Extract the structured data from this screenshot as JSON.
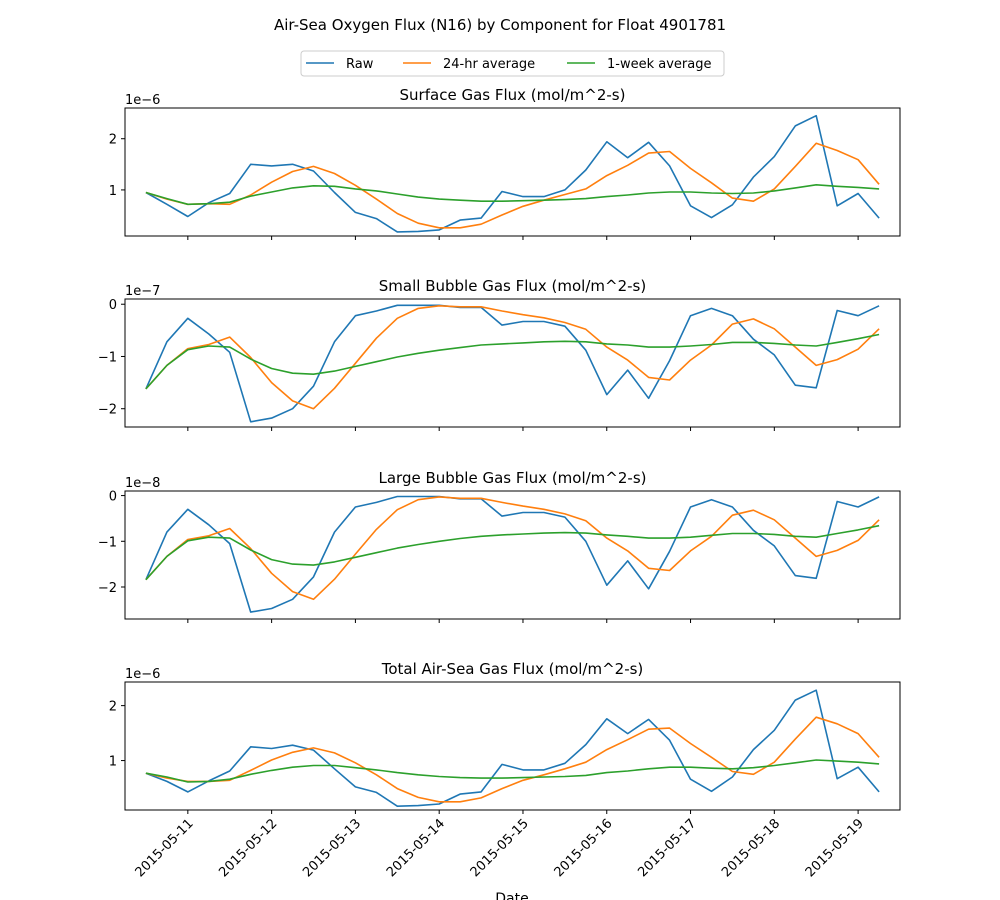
{
  "figure": {
    "title": "Air-Sea Oxygen Flux (N16) by Component for Float 4901781",
    "xlabel": "Date"
  },
  "legend": {
    "placement": "top-center",
    "entries": [
      {
        "label": "Raw",
        "color": "#1f77b4"
      },
      {
        "label": "24-hr average",
        "color": "#ff7f0e"
      },
      {
        "label": "1-week average",
        "color": "#2ca02c"
      }
    ]
  },
  "colors": {
    "raw": "#1f77b4",
    "avg24": "#ff7f0e",
    "avg1w": "#2ca02c"
  },
  "chart_data": [
    {
      "type": "line",
      "title": "Surface Gas Flux (mol/m^2-s)",
      "exponent": "1e−6",
      "xlim": [
        "2015-05-10T06:00",
        "2015-05-19T12:00"
      ],
      "ylim": [
        0.1,
        2.6
      ],
      "yticks": [
        1,
        2
      ],
      "ytick_labels": [
        "1",
        "2"
      ],
      "x": [
        "2015-05-10T12:00",
        "2015-05-10T18:00",
        "2015-05-11T00:00",
        "2015-05-11T06:00",
        "2015-05-11T12:00",
        "2015-05-11T18:00",
        "2015-05-12T00:00",
        "2015-05-12T06:00",
        "2015-05-12T12:00",
        "2015-05-12T18:00",
        "2015-05-13T00:00",
        "2015-05-13T06:00",
        "2015-05-13T12:00",
        "2015-05-13T18:00",
        "2015-05-14T00:00",
        "2015-05-14T06:00",
        "2015-05-14T12:00",
        "2015-05-14T18:00",
        "2015-05-15T00:00",
        "2015-05-15T06:00",
        "2015-05-15T12:00",
        "2015-05-15T18:00",
        "2015-05-16T00:00",
        "2015-05-16T06:00",
        "2015-05-16T12:00",
        "2015-05-16T18:00",
        "2015-05-17T00:00",
        "2015-05-17T06:00",
        "2015-05-17T12:00",
        "2015-05-17T18:00",
        "2015-05-18T00:00",
        "2015-05-18T06:00",
        "2015-05-18T12:00",
        "2015-05-18T18:00",
        "2015-05-19T00:00",
        "2015-05-19T06:00"
      ],
      "series": [
        {
          "name": "Raw",
          "values": [
            0.95,
            0.72,
            0.48,
            0.75,
            0.93,
            1.5,
            1.47,
            1.5,
            1.37,
            0.95,
            0.56,
            0.44,
            0.18,
            0.19,
            0.22,
            0.41,
            0.45,
            0.97,
            0.87,
            0.87,
            1.0,
            1.39,
            1.94,
            1.63,
            1.93,
            1.47,
            0.69,
            0.46,
            0.71,
            1.25,
            1.65,
            2.25,
            2.45,
            0.69,
            0.93,
            0.45
          ]
        },
        {
          "name": "24-hr average",
          "values": [
            0.95,
            0.82,
            0.72,
            0.73,
            0.72,
            0.9,
            1.15,
            1.36,
            1.46,
            1.32,
            1.09,
            0.82,
            0.54,
            0.35,
            0.26,
            0.26,
            0.33,
            0.51,
            0.68,
            0.8,
            0.91,
            1.02,
            1.28,
            1.48,
            1.72,
            1.75,
            1.42,
            1.14,
            0.84,
            0.78,
            1.02,
            1.46,
            1.91,
            1.77,
            1.59,
            1.11
          ]
        },
        {
          "name": "1-week average",
          "values": [
            0.95,
            0.83,
            0.72,
            0.73,
            0.76,
            0.88,
            0.96,
            1.04,
            1.08,
            1.07,
            1.02,
            0.98,
            0.92,
            0.86,
            0.82,
            0.8,
            0.78,
            0.78,
            0.79,
            0.8,
            0.81,
            0.83,
            0.87,
            0.9,
            0.94,
            0.96,
            0.96,
            0.94,
            0.93,
            0.94,
            0.98,
            1.04,
            1.1,
            1.07,
            1.05,
            1.02
          ]
        }
      ]
    },
    {
      "type": "line",
      "title": "Small Bubble Gas Flux (mol/m^2-s)",
      "exponent": "1e−7",
      "xlim": [
        "2015-05-10T06:00",
        "2015-05-19T12:00"
      ],
      "ylim": [
        -2.35,
        0.1
      ],
      "yticks": [
        -2,
        -1,
        0
      ],
      "ytick_labels": [
        "−2",
        "−1",
        "0"
      ],
      "x": [
        "2015-05-10T12:00",
        "2015-05-10T18:00",
        "2015-05-11T00:00",
        "2015-05-11T06:00",
        "2015-05-11T12:00",
        "2015-05-11T18:00",
        "2015-05-12T00:00",
        "2015-05-12T06:00",
        "2015-05-12T12:00",
        "2015-05-12T18:00",
        "2015-05-13T00:00",
        "2015-05-13T06:00",
        "2015-05-13T12:00",
        "2015-05-13T18:00",
        "2015-05-14T00:00",
        "2015-05-14T06:00",
        "2015-05-14T12:00",
        "2015-05-14T18:00",
        "2015-05-15T00:00",
        "2015-05-15T06:00",
        "2015-05-15T12:00",
        "2015-05-15T18:00",
        "2015-05-16T00:00",
        "2015-05-16T06:00",
        "2015-05-16T12:00",
        "2015-05-16T18:00",
        "2015-05-17T00:00",
        "2015-05-17T06:00",
        "2015-05-17T12:00",
        "2015-05-17T18:00",
        "2015-05-18T00:00",
        "2015-05-18T06:00",
        "2015-05-18T12:00",
        "2015-05-18T18:00",
        "2015-05-19T00:00",
        "2015-05-19T06:00"
      ],
      "series": [
        {
          "name": "Raw",
          "values": [
            -1.62,
            -0.72,
            -0.27,
            -0.57,
            -0.92,
            -2.25,
            -2.18,
            -2.0,
            -1.57,
            -0.72,
            -0.22,
            -0.13,
            -0.02,
            -0.02,
            -0.02,
            -0.06,
            -0.06,
            -0.4,
            -0.33,
            -0.33,
            -0.42,
            -0.88,
            -1.73,
            -1.26,
            -1.8,
            -1.08,
            -0.22,
            -0.08,
            -0.22,
            -0.67,
            -0.97,
            -1.55,
            -1.6,
            -0.12,
            -0.22,
            -0.03
          ]
        },
        {
          "name": "24-hr average",
          "values": [
            -1.62,
            -1.17,
            -0.85,
            -0.77,
            -0.63,
            -1.02,
            -1.5,
            -1.85,
            -2.0,
            -1.61,
            -1.13,
            -0.65,
            -0.27,
            -0.08,
            -0.03,
            -0.05,
            -0.05,
            -0.13,
            -0.2,
            -0.26,
            -0.35,
            -0.48,
            -0.82,
            -1.07,
            -1.4,
            -1.45,
            -1.07,
            -0.78,
            -0.38,
            -0.28,
            -0.47,
            -0.82,
            -1.17,
            -1.06,
            -0.86,
            -0.47
          ]
        },
        {
          "name": "1-week average",
          "values": [
            -1.62,
            -1.17,
            -0.87,
            -0.8,
            -0.82,
            -1.05,
            -1.23,
            -1.32,
            -1.34,
            -1.28,
            -1.19,
            -1.1,
            -1.01,
            -0.94,
            -0.88,
            -0.83,
            -0.78,
            -0.76,
            -0.74,
            -0.72,
            -0.71,
            -0.72,
            -0.76,
            -0.78,
            -0.82,
            -0.82,
            -0.8,
            -0.77,
            -0.73,
            -0.73,
            -0.75,
            -0.78,
            -0.8,
            -0.73,
            -0.66,
            -0.58
          ]
        }
      ]
    },
    {
      "type": "line",
      "title": "Large Bubble Gas Flux (mol/m^2-s)",
      "exponent": "1e−8",
      "xlim": [
        "2015-05-10T06:00",
        "2015-05-19T12:00"
      ],
      "ylim": [
        -2.7,
        0.1
      ],
      "yticks": [
        -2,
        -1,
        0
      ],
      "ytick_labels": [
        "−2",
        "−1",
        "0"
      ],
      "x": [
        "2015-05-10T12:00",
        "2015-05-10T18:00",
        "2015-05-11T00:00",
        "2015-05-11T06:00",
        "2015-05-11T12:00",
        "2015-05-11T18:00",
        "2015-05-12T00:00",
        "2015-05-12T06:00",
        "2015-05-12T12:00",
        "2015-05-12T18:00",
        "2015-05-13T00:00",
        "2015-05-13T06:00",
        "2015-05-13T12:00",
        "2015-05-13T18:00",
        "2015-05-14T00:00",
        "2015-05-14T06:00",
        "2015-05-14T12:00",
        "2015-05-14T18:00",
        "2015-05-15T00:00",
        "2015-05-15T06:00",
        "2015-05-15T12:00",
        "2015-05-15T18:00",
        "2015-05-16T00:00",
        "2015-05-16T06:00",
        "2015-05-16T12:00",
        "2015-05-16T18:00",
        "2015-05-17T00:00",
        "2015-05-17T06:00",
        "2015-05-17T12:00",
        "2015-05-17T18:00",
        "2015-05-18T00:00",
        "2015-05-18T06:00",
        "2015-05-18T12:00",
        "2015-05-18T18:00",
        "2015-05-19T00:00",
        "2015-05-19T06:00"
      ],
      "series": [
        {
          "name": "Raw",
          "values": [
            -1.84,
            -0.8,
            -0.3,
            -0.64,
            -1.05,
            -2.55,
            -2.47,
            -2.27,
            -1.78,
            -0.8,
            -0.25,
            -0.15,
            -0.02,
            -0.02,
            -0.02,
            -0.07,
            -0.07,
            -0.45,
            -0.37,
            -0.37,
            -0.47,
            -1.0,
            -1.96,
            -1.43,
            -2.04,
            -1.22,
            -0.25,
            -0.09,
            -0.25,
            -0.76,
            -1.1,
            -1.75,
            -1.81,
            -0.13,
            -0.25,
            -0.03
          ]
        },
        {
          "name": "24-hr average",
          "values": [
            -1.84,
            -1.33,
            -0.96,
            -0.88,
            -0.72,
            -1.16,
            -1.7,
            -2.1,
            -2.27,
            -1.83,
            -1.28,
            -0.74,
            -0.31,
            -0.09,
            -0.03,
            -0.06,
            -0.06,
            -0.15,
            -0.23,
            -0.3,
            -0.4,
            -0.55,
            -0.93,
            -1.21,
            -1.59,
            -1.64,
            -1.21,
            -0.89,
            -0.43,
            -0.32,
            -0.53,
            -0.93,
            -1.33,
            -1.2,
            -0.98,
            -0.53
          ]
        },
        {
          "name": "1-week average",
          "values": [
            -1.84,
            -1.33,
            -0.99,
            -0.91,
            -0.93,
            -1.19,
            -1.4,
            -1.5,
            -1.52,
            -1.45,
            -1.35,
            -1.25,
            -1.15,
            -1.07,
            -1.0,
            -0.94,
            -0.89,
            -0.86,
            -0.84,
            -0.82,
            -0.81,
            -0.82,
            -0.86,
            -0.89,
            -0.93,
            -0.93,
            -0.91,
            -0.87,
            -0.83,
            -0.83,
            -0.85,
            -0.89,
            -0.91,
            -0.83,
            -0.75,
            -0.66
          ]
        }
      ]
    },
    {
      "type": "line",
      "title": "Total Air-Sea Gas Flux (mol/m^2-s)",
      "exponent": "1e−6",
      "xlim": [
        "2015-05-10T06:00",
        "2015-05-19T12:00"
      ],
      "ylim": [
        0.1,
        2.43
      ],
      "yticks": [
        1,
        2
      ],
      "ytick_labels": [
        "1",
        "2"
      ],
      "x": [
        "2015-05-10T12:00",
        "2015-05-10T18:00",
        "2015-05-11T00:00",
        "2015-05-11T06:00",
        "2015-05-11T12:00",
        "2015-05-11T18:00",
        "2015-05-12T00:00",
        "2015-05-12T06:00",
        "2015-05-12T12:00",
        "2015-05-12T18:00",
        "2015-05-13T00:00",
        "2015-05-13T06:00",
        "2015-05-13T12:00",
        "2015-05-13T18:00",
        "2015-05-14T00:00",
        "2015-05-14T06:00",
        "2015-05-14T12:00",
        "2015-05-14T18:00",
        "2015-05-15T00:00",
        "2015-05-15T06:00",
        "2015-05-15T12:00",
        "2015-05-15T18:00",
        "2015-05-16T00:00",
        "2015-05-16T06:00",
        "2015-05-16T12:00",
        "2015-05-16T18:00",
        "2015-05-17T00:00",
        "2015-05-17T06:00",
        "2015-05-17T12:00",
        "2015-05-17T18:00",
        "2015-05-18T00:00",
        "2015-05-18T06:00",
        "2015-05-18T12:00",
        "2015-05-18T18:00",
        "2015-05-19T00:00",
        "2015-05-19T06:00"
      ],
      "series": [
        {
          "name": "Raw",
          "values": [
            0.77,
            0.62,
            0.43,
            0.63,
            0.81,
            1.25,
            1.22,
            1.28,
            1.19,
            0.85,
            0.52,
            0.42,
            0.17,
            0.18,
            0.21,
            0.39,
            0.43,
            0.93,
            0.83,
            0.83,
            0.95,
            1.29,
            1.76,
            1.49,
            1.75,
            1.37,
            0.66,
            0.44,
            0.7,
            1.2,
            1.55,
            2.1,
            2.28,
            0.67,
            0.88,
            0.43
          ]
        },
        {
          "name": "24-hr average",
          "values": [
            0.77,
            0.68,
            0.62,
            0.62,
            0.64,
            0.82,
            1.01,
            1.15,
            1.23,
            1.14,
            0.96,
            0.74,
            0.49,
            0.33,
            0.25,
            0.25,
            0.32,
            0.49,
            0.64,
            0.74,
            0.85,
            0.97,
            1.2,
            1.38,
            1.57,
            1.59,
            1.31,
            1.06,
            0.8,
            0.75,
            0.97,
            1.39,
            1.79,
            1.67,
            1.49,
            1.06
          ]
        },
        {
          "name": "1-week average",
          "values": [
            0.77,
            0.7,
            0.61,
            0.62,
            0.66,
            0.75,
            0.82,
            0.88,
            0.91,
            0.91,
            0.87,
            0.83,
            0.78,
            0.74,
            0.71,
            0.69,
            0.68,
            0.68,
            0.69,
            0.7,
            0.71,
            0.73,
            0.78,
            0.81,
            0.85,
            0.88,
            0.88,
            0.86,
            0.85,
            0.87,
            0.91,
            0.96,
            1.01,
            0.99,
            0.97,
            0.94
          ]
        }
      ]
    }
  ],
  "xaxis": {
    "ticks": [
      "2015-05-11",
      "2015-05-12",
      "2015-05-13",
      "2015-05-14",
      "2015-05-15",
      "2015-05-16",
      "2015-05-17",
      "2015-05-18",
      "2015-05-19"
    ],
    "tick_rotation": 45
  }
}
